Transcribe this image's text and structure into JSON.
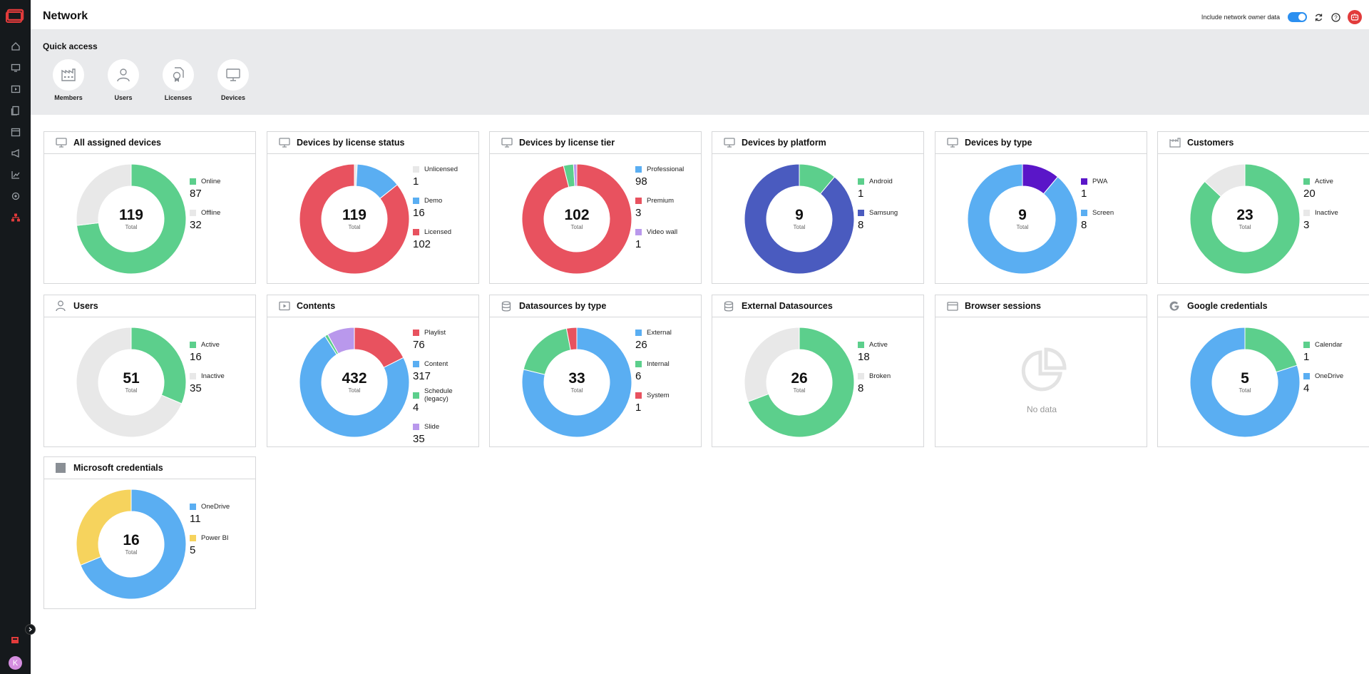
{
  "app": {
    "title": "Network",
    "owner_label": "Include network owner data",
    "avatar_letter": "K"
  },
  "quick_access": {
    "title": "Quick access",
    "items": [
      {
        "label": "Members",
        "icon": "factory-icon"
      },
      {
        "label": "Users",
        "icon": "user-icon"
      },
      {
        "label": "Licenses",
        "icon": "license-icon"
      },
      {
        "label": "Devices",
        "icon": "monitor-icon"
      }
    ]
  },
  "colors": {
    "green": "#5ccf8c",
    "gray": "#e8e8e8",
    "red": "#e8525f",
    "blue": "#5aaef2",
    "navy": "#4a5bbf",
    "purple": "#5a16c8",
    "lavender": "#b998ec",
    "yellow": "#f6d35d"
  },
  "total_label": "Total",
  "cards": [
    {
      "title": "All assigned devices",
      "icon": "monitor-icon",
      "total": "119",
      "items": [
        {
          "label": "Online",
          "value": "87",
          "color": "#5ccf8c"
        },
        {
          "label": "Offline",
          "value": "32",
          "color": "#e8e8e8"
        }
      ]
    },
    {
      "title": "Devices by license status",
      "icon": "monitor-icon",
      "total": "119",
      "items": [
        {
          "label": "Unlicensed",
          "value": "1",
          "color": "#e8e8e8"
        },
        {
          "label": "Demo",
          "value": "16",
          "color": "#5aaef2"
        },
        {
          "label": "Licensed",
          "value": "102",
          "color": "#e8525f"
        }
      ]
    },
    {
      "title": "Devices by license tier",
      "icon": "monitor-icon",
      "total": "102",
      "items": [
        {
          "label": "Professional",
          "value": "98",
          "color": "#e8525f"
        },
        {
          "label": "Premium",
          "value": "3",
          "color": "#5ccf8c"
        },
        {
          "label": "Video wall",
          "value": "1",
          "color": "#b998ec"
        }
      ],
      "legend_colors": [
        "#5aaef2",
        "#e8525f",
        "#b998ec"
      ]
    },
    {
      "title": "Devices by platform",
      "icon": "monitor-icon",
      "total": "9",
      "items": [
        {
          "label": "Android",
          "value": "1",
          "color": "#5ccf8c"
        },
        {
          "label": "Samsung",
          "value": "8",
          "color": "#4a5bbf"
        }
      ]
    },
    {
      "title": "Devices by type",
      "icon": "monitor-icon",
      "total": "9",
      "items": [
        {
          "label": "PWA",
          "value": "1",
          "color": "#5a16c8"
        },
        {
          "label": "Screen",
          "value": "8",
          "color": "#5aaef2"
        }
      ]
    },
    {
      "title": "Customers",
      "icon": "factory-icon",
      "total": "23",
      "items": [
        {
          "label": "Active",
          "value": "20",
          "color": "#5ccf8c"
        },
        {
          "label": "Inactive",
          "value": "3",
          "color": "#e8e8e8"
        }
      ]
    },
    {
      "title": "Users",
      "icon": "user-icon",
      "total": "51",
      "items": [
        {
          "label": "Active",
          "value": "16",
          "color": "#5ccf8c"
        },
        {
          "label": "Inactive",
          "value": "35",
          "color": "#e8e8e8"
        }
      ]
    },
    {
      "title": "Contents",
      "icon": "play-icon",
      "total": "432",
      "items": [
        {
          "label": "Playlist",
          "value": "76",
          "color": "#e8525f"
        },
        {
          "label": "Content",
          "value": "317",
          "color": "#5aaef2"
        },
        {
          "label": "Schedule (legacy)",
          "value": "4",
          "color": "#5ccf8c"
        },
        {
          "label": "Slide",
          "value": "35",
          "color": "#b998ec"
        }
      ]
    },
    {
      "title": "Datasources by type",
      "icon": "database-icon",
      "total": "33",
      "items": [
        {
          "label": "External",
          "value": "26",
          "color": "#5aaef2"
        },
        {
          "label": "Internal",
          "value": "6",
          "color": "#5ccf8c"
        },
        {
          "label": "System",
          "value": "1",
          "color": "#e8525f"
        }
      ]
    },
    {
      "title": "External Datasources",
      "icon": "database-icon",
      "total": "26",
      "items": [
        {
          "label": "Active",
          "value": "18",
          "color": "#5ccf8c"
        },
        {
          "label": "Broken",
          "value": "8",
          "color": "#e8e8e8"
        }
      ]
    },
    {
      "title": "Browser sessions",
      "icon": "browser-icon",
      "nodata": "No data",
      "items": []
    },
    {
      "title": "Google credentials",
      "icon": "google-icon",
      "total": "5",
      "items": [
        {
          "label": "Calendar",
          "value": "1",
          "color": "#5ccf8c"
        },
        {
          "label": "OneDrive",
          "value": "4",
          "color": "#5aaef2"
        }
      ]
    },
    {
      "title": "Microsoft credentials",
      "icon": "microsoft-icon",
      "total": "16",
      "items": [
        {
          "label": "OneDrive",
          "value": "11",
          "color": "#5aaef2"
        },
        {
          "label": "Power BI",
          "value": "5",
          "color": "#f6d35d"
        }
      ]
    }
  ]
}
